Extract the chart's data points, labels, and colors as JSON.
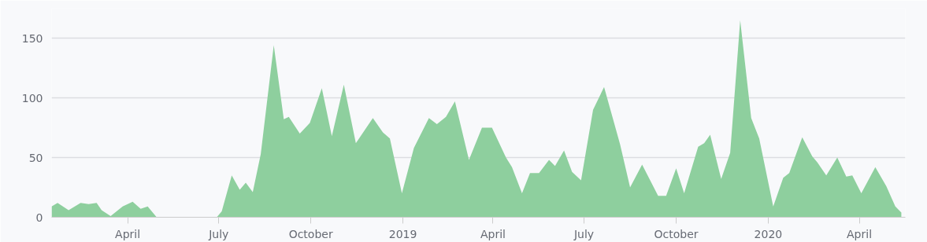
{
  "chart_data": {
    "type": "area",
    "color": "#8ecf9e",
    "grid": "y",
    "x": [
      "2018-01-15",
      "2018-01-21",
      "2018-02-01",
      "2018-02-13",
      "2018-02-21",
      "2018-03-01",
      "2018-03-06",
      "2018-03-15",
      "2018-03-27",
      "2018-04-06",
      "2018-04-14",
      "2018-04-21",
      "2018-04-30",
      "2018-06-29",
      "2018-07-04",
      "2018-07-14",
      "2018-07-22",
      "2018-07-28",
      "2018-08-04",
      "2018-08-12",
      "2018-08-25",
      "2018-09-04",
      "2018-09-09",
      "2018-09-20",
      "2018-09-30",
      "2018-10-12",
      "2018-10-22",
      "2018-11-03",
      "2018-11-15",
      "2018-12-02",
      "2018-12-12",
      "2018-12-19",
      "2018-12-31",
      "2019-01-12",
      "2019-01-27",
      "2019-02-04",
      "2019-02-13",
      "2019-02-22",
      "2019-03-08",
      "2019-03-21",
      "2019-03-31",
      "2019-04-14",
      "2019-04-20",
      "2019-04-30",
      "2019-05-08",
      "2019-05-17",
      "2019-05-27",
      "2019-06-02",
      "2019-06-11",
      "2019-06-19",
      "2019-06-28",
      "2019-07-10",
      "2019-07-21",
      "2019-07-30",
      "2019-08-06",
      "2019-08-16",
      "2019-08-28",
      "2019-09-13",
      "2019-09-21",
      "2019-10-01",
      "2019-10-09",
      "2019-10-23",
      "2019-10-29",
      "2019-11-04",
      "2019-11-15",
      "2019-11-24",
      "2019-12-04",
      "2019-12-15",
      "2019-12-23",
      "2020-01-06",
      "2020-01-16",
      "2020-01-22",
      "2020-02-04",
      "2020-02-14",
      "2020-02-19",
      "2020-02-28",
      "2020-03-10",
      "2020-03-19",
      "2020-03-25",
      "2020-04-03",
      "2020-04-17",
      "2020-04-28",
      "2020-05-07",
      "2020-05-13"
    ],
    "values": [
      9,
      12,
      6,
      12,
      11,
      12,
      6,
      1,
      9,
      13,
      7,
      9,
      0,
      0,
      5,
      35,
      23,
      29,
      21,
      53,
      144,
      82,
      84,
      70,
      79,
      108,
      68,
      111,
      62,
      83,
      71,
      66,
      20,
      58,
      83,
      78,
      84,
      97,
      48,
      75,
      75,
      50,
      42,
      20,
      37,
      37,
      48,
      43,
      56,
      38,
      31,
      90,
      109,
      82,
      61,
      25,
      44,
      18,
      18,
      41,
      20,
      59,
      62,
      69,
      32,
      54,
      165,
      83,
      66,
      9,
      33,
      37,
      67,
      51,
      46,
      35,
      50,
      34,
      35,
      20,
      42,
      26,
      9,
      4
    ],
    "xlim": [
      "2018-01-15",
      "2020-05-17"
    ],
    "ylim": [
      0,
      175
    ],
    "xticks": [
      {
        "value": "2018-04-01",
        "label": "April"
      },
      {
        "value": "2018-07-01",
        "label": "July"
      },
      {
        "value": "2018-10-01",
        "label": "October"
      },
      {
        "value": "2019-01-01",
        "label": "2019"
      },
      {
        "value": "2019-04-01",
        "label": "April"
      },
      {
        "value": "2019-07-01",
        "label": "July"
      },
      {
        "value": "2019-10-01",
        "label": "October"
      },
      {
        "value": "2020-01-01",
        "label": "2020"
      },
      {
        "value": "2020-04-01",
        "label": "April"
      }
    ],
    "yticks": [
      0,
      50,
      100,
      150
    ]
  }
}
